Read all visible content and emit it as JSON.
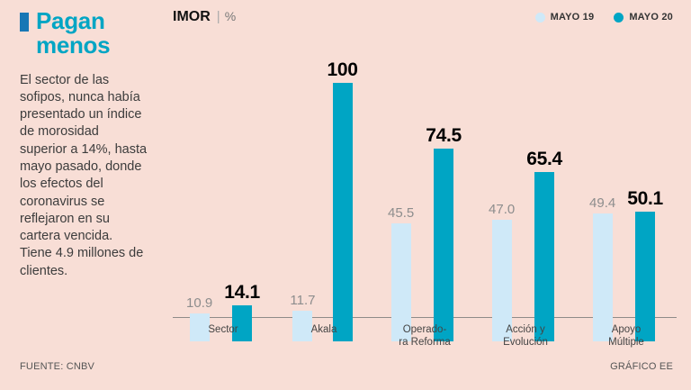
{
  "page": {
    "title": "Pagan menos",
    "description": "El sector de las sofipos, nunca había presentado un índice de morosidad superior a 14%, hasta mayo pasado, donde los efectos del coronavirus se reflejaron en su cartera vencida. Tiene 4.9 millones de clientes.",
    "source": "FUENTE: CNBV",
    "credit": "GRÁFICO EE"
  },
  "chart": {
    "title": "IMOR",
    "title_divider": "|",
    "unit": "%",
    "legend": [
      {
        "label": "MAYO 19",
        "color": "#cfe9f8"
      },
      {
        "label": "MAYO 20",
        "color": "#00a5c4"
      }
    ]
  },
  "chart_data": {
    "type": "bar",
    "title": "IMOR (%)",
    "categories": [
      "Sector",
      "Akala",
      "Operadora Reforma",
      "Acción y Evolución",
      "Apoyo Múltiple"
    ],
    "category_lines": [
      [
        "Sector"
      ],
      [
        "Akala"
      ],
      [
        "Operado-",
        "ra Reforma"
      ],
      [
        "Acción y",
        "Evolución"
      ],
      [
        "Apoyo",
        "Múltiple"
      ]
    ],
    "series": [
      {
        "name": "MAYO 19",
        "color": "#cfe9f8",
        "values": [
          10.9,
          11.7,
          45.5,
          47.0,
          49.4
        ],
        "labels": [
          "10.9",
          "11.7",
          "45.5",
          "47.0",
          "49.4"
        ]
      },
      {
        "name": "MAYO 20",
        "color": "#00a5c4",
        "values": [
          14.1,
          100,
          74.5,
          65.4,
          50.1
        ],
        "labels": [
          "14.1",
          "100",
          "74.5",
          "65.4",
          "50.1"
        ]
      }
    ],
    "xlabel": "",
    "ylabel": "IMOR %",
    "ylim": [
      0,
      100
    ],
    "grid": false,
    "legend_position": "top-right"
  },
  "colors": {
    "background": "#f8ded6",
    "accent_cyan": "#00a5c4",
    "marker_blue": "#1777b5",
    "bar_light": "#cfe9f8",
    "bar_teal": "#00a5c4"
  }
}
